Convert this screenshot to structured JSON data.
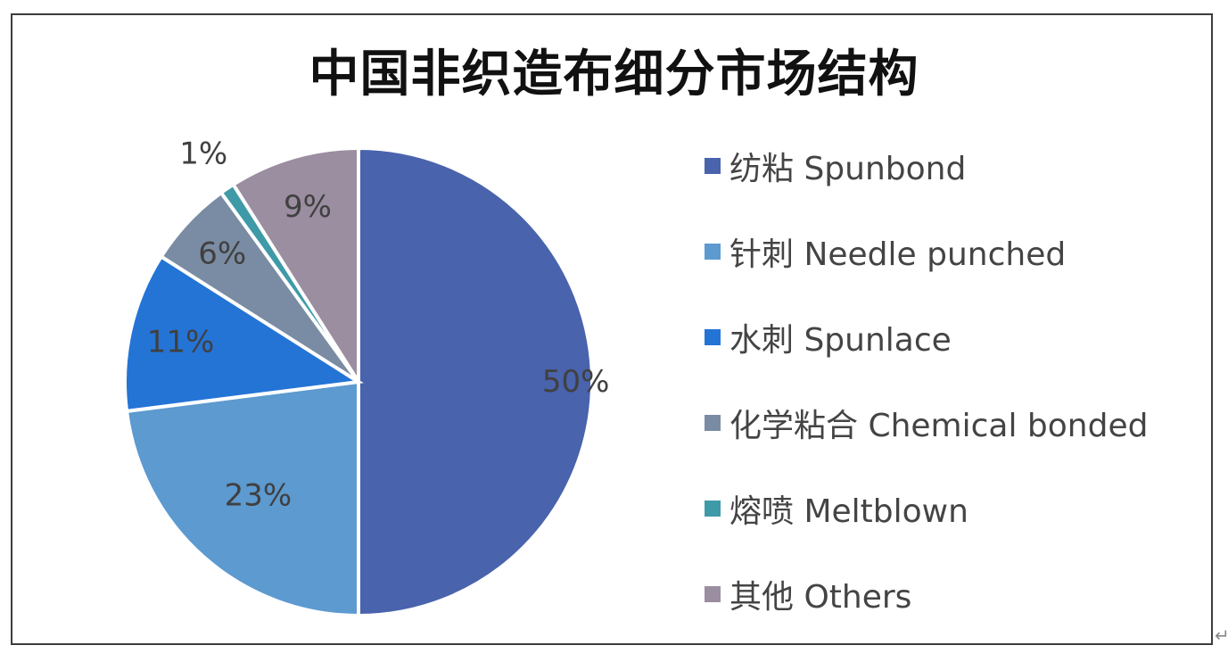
{
  "chart_data": {
    "type": "pie",
    "title": "中国非织造布细分市场结构",
    "slices": [
      {
        "name": "纺粘 Spunbond",
        "value": 50,
        "label": "50%",
        "color": "#4963AC"
      },
      {
        "name": "针刺 Needle punched",
        "value": 23,
        "label": "23%",
        "color": "#5C9AD0"
      },
      {
        "name": "水刺 Spunlace",
        "value": 11,
        "label": "11%",
        "color": "#2474D6"
      },
      {
        "name": "化学粘合 Chemical bonded",
        "value": 6,
        "label": "6%",
        "color": "#7A8CA3"
      },
      {
        "name": "熔喷 Meltblown",
        "value": 1,
        "label": "1%",
        "color": "#3F9AA8"
      },
      {
        "name": "其他 Others",
        "value": 9,
        "label": "9%",
        "color": "#9B8EA0"
      }
    ],
    "legend_position": "right"
  },
  "corner_glyph": "↵"
}
